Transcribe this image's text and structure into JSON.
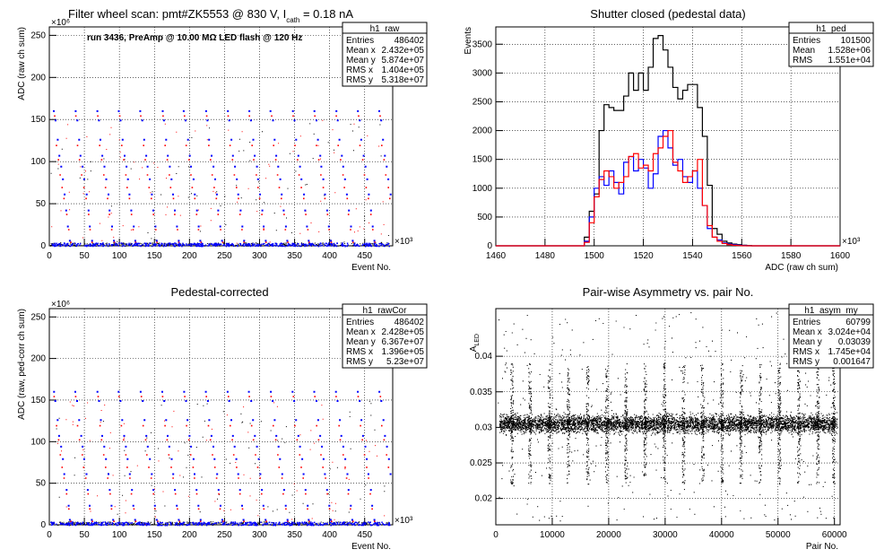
{
  "panels": [
    {
      "title": "Filter wheel scan: pmt#ZK5553 @   830 V, I",
      "title_sub": "cath",
      "title_tail": " = 0.18 nA",
      "xlabel": "Event No.",
      "ylabel": "ADC (raw ch sum)",
      "x_exp": "×10³",
      "y_exp": "×10⁶",
      "annotation": "run 3436, PreAmp @ 10.00 MΩ LED flash @  120 Hz",
      "stats": {
        "name": "h1_raw",
        "rows": [
          [
            "Entries",
            "486402"
          ],
          [
            "Mean x",
            "2.432e+05"
          ],
          [
            "Mean y",
            "5.874e+07"
          ],
          [
            "RMS x",
            "1.404e+05"
          ],
          [
            "RMS y",
            "5.318e+07"
          ]
        ]
      }
    },
    {
      "title": "Shutter closed (pedestal data)",
      "xlabel": "ADC (raw ch sum)",
      "ylabel": "Events",
      "x_exp": "×10³",
      "stats": {
        "name": "h1_ped",
        "rows": [
          [
            "Entries",
            "101500"
          ],
          [
            "Mean",
            "1.528e+06"
          ],
          [
            "RMS",
            "1.551e+04"
          ]
        ]
      }
    },
    {
      "title": "Pedestal-corrected",
      "xlabel": "Event No.",
      "ylabel": "ADC (raw, ped-corr ch sum)",
      "x_exp": "×10³",
      "y_exp": "×10⁶",
      "stats": {
        "name": "h1_rawCor",
        "rows": [
          [
            "Entries",
            "486402"
          ],
          [
            "Mean x",
            "2.428e+05"
          ],
          [
            "Mean y",
            "6.367e+07"
          ],
          [
            "RMS x",
            "1.396e+05"
          ],
          [
            "RMS y",
            "5.23e+07"
          ]
        ]
      }
    },
    {
      "title": "Pair-wise Asymmetry vs. pair No.",
      "xlabel": "Pair No.",
      "ylabel": "A",
      "ylabel_sub": "LED",
      "stats": {
        "name": "h1_asym_my",
        "rows": [
          [
            "Entries",
            "60799"
          ],
          [
            "Mean x",
            "3.024e+04"
          ],
          [
            "Mean y",
            "0.03039"
          ],
          [
            "RMS x",
            "1.745e+04"
          ],
          [
            "RMS y",
            "0.001647"
          ]
        ]
      }
    }
  ],
  "colors": {
    "black": "#000000",
    "blue": "#0000ff",
    "red": "#ff0000"
  },
  "chart_data": [
    {
      "type": "scatter",
      "x_range": [
        0,
        490
      ],
      "y_range": [
        0,
        260
      ],
      "x_ticks": [
        0,
        50,
        100,
        150,
        200,
        250,
        300,
        350,
        400,
        450
      ],
      "y_ticks": [
        0,
        50,
        100,
        150,
        200,
        250
      ],
      "grid": true,
      "legend": "top-right",
      "scan_levels_blue": [
        161,
        150,
        127,
        108,
        95,
        80,
        62,
        43,
        24,
        7,
        2
      ],
      "scan_levels_red": [
        155,
        120,
        103,
        85,
        70,
        57,
        38,
        20,
        5
      ],
      "scan_period": 31
    },
    {
      "type": "line",
      "x_range": [
        1460,
        1600
      ],
      "y_range": [
        0,
        3800
      ],
      "x_ticks": [
        1460,
        1480,
        1500,
        1520,
        1540,
        1560,
        1580,
        1600
      ],
      "y_ticks": [
        0,
        500,
        1000,
        1500,
        2000,
        2500,
        3000,
        3500
      ],
      "grid": true,
      "legend": "top-right",
      "bin_width": 2,
      "x_start": 1496,
      "series": [
        {
          "color": "black",
          "values": [
            150,
            600,
            900,
            2000,
            2450,
            2400,
            2350,
            2350,
            2600,
            3000,
            2700,
            3000,
            2700,
            3100,
            3600,
            3650,
            3400,
            3100,
            2750,
            2550,
            2700,
            2800,
            2800,
            2400,
            1900,
            1050,
            300,
            200,
            80,
            50,
            30,
            20,
            10,
            5,
            0
          ]
        },
        {
          "color": "blue",
          "values": [
            80,
            500,
            1000,
            1200,
            1050,
            1300,
            1100,
            900,
            1450,
            1550,
            1300,
            1500,
            1350,
            1000,
            1250,
            1900,
            2000,
            1700,
            1400,
            1500,
            1200,
            1100,
            1300,
            1000,
            700,
            300,
            150,
            100,
            50,
            30,
            20,
            10,
            5,
            0,
            0
          ]
        },
        {
          "color": "red",
          "values": [
            60,
            400,
            850,
            1150,
            1300,
            1200,
            1000,
            1100,
            1200,
            1550,
            1600,
            1350,
            1400,
            1300,
            1600,
            1700,
            1900,
            2000,
            1450,
            1300,
            1100,
            1200,
            1300,
            1500,
            700,
            350,
            150,
            80,
            40,
            20,
            10,
            5,
            0,
            0,
            0
          ]
        }
      ]
    },
    {
      "type": "scatter",
      "x_range": [
        0,
        490
      ],
      "y_range": [
        0,
        260
      ],
      "x_ticks": [
        0,
        50,
        100,
        150,
        200,
        250,
        300,
        350,
        400,
        450
      ],
      "y_ticks": [
        0,
        50,
        100,
        150,
        200,
        250
      ],
      "grid": true,
      "legend": "top-right",
      "scan_levels_blue": [
        161,
        150,
        127,
        108,
        95,
        80,
        62,
        43,
        24,
        7,
        2
      ],
      "scan_levels_red": [
        155,
        120,
        103,
        85,
        70,
        57,
        38,
        20,
        5
      ],
      "scan_period": 31
    },
    {
      "type": "scatter",
      "x_range": [
        0,
        61000
      ],
      "y_range": [
        0.0163,
        0.0467
      ],
      "x_ticks": [
        0,
        10000,
        20000,
        30000,
        40000,
        50000,
        60000
      ],
      "y_ticks": [
        0.02,
        0.025,
        0.03,
        0.035,
        0.04
      ],
      "grid": true,
      "legend": "top-right",
      "center": 0.0305,
      "spike_positions": [
        2800,
        6000,
        9400,
        12800,
        16200,
        19600,
        23000,
        26400,
        29800,
        33200,
        36600,
        40000,
        43400,
        46800,
        50200,
        53600,
        57000,
        59800
      ]
    }
  ]
}
